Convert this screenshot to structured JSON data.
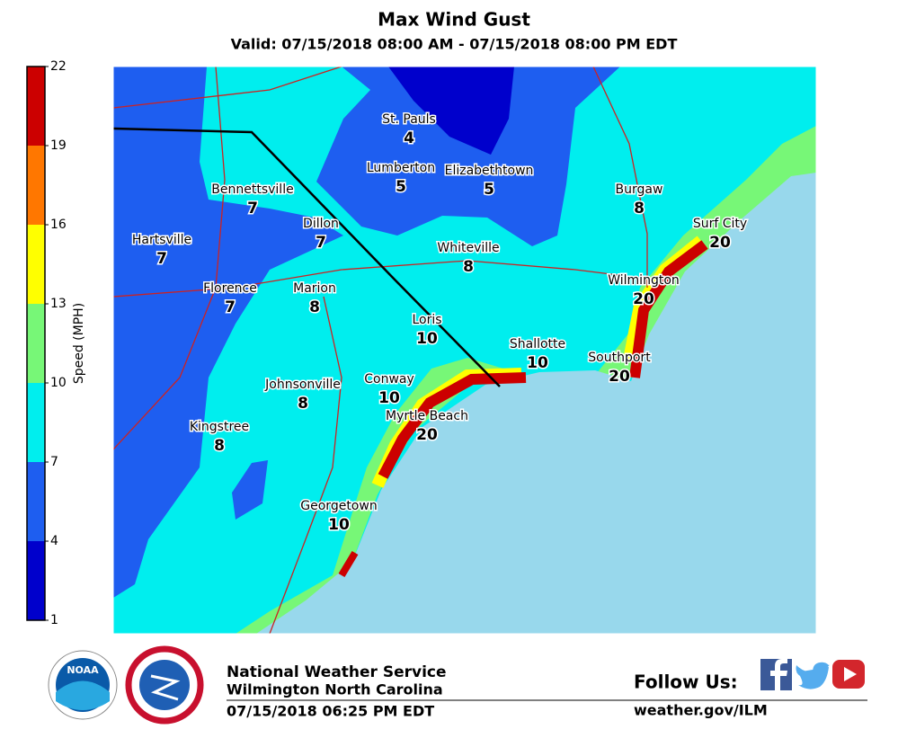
{
  "title": "Max Wind Gust",
  "subtitle": "Valid: 07/15/2018 08:00 AM - 07/15/2018 08:00 PM EDT",
  "colorbar": {
    "label": "Speed (MPH)",
    "ticks": [
      1,
      4,
      7,
      10,
      13,
      16,
      19,
      22
    ],
    "colors": [
      "#0000cc",
      "#1e5ef0",
      "#00eeee",
      "#77f777",
      "#ffff00",
      "#ff7700",
      "#cc0000"
    ]
  },
  "cities": [
    {
      "name": "St. Pauls",
      "value": 4
    },
    {
      "name": "Lumberton",
      "value": 5
    },
    {
      "name": "Elizabethtown",
      "value": 5
    },
    {
      "name": "Bennettsville",
      "value": 7
    },
    {
      "name": "Burgaw",
      "value": 8
    },
    {
      "name": "Dillon",
      "value": 7
    },
    {
      "name": "Surf City",
      "value": 20
    },
    {
      "name": "Hartsville",
      "value": 7
    },
    {
      "name": "Whiteville",
      "value": 8
    },
    {
      "name": "Wilmington",
      "value": 20
    },
    {
      "name": "Florence",
      "value": 7
    },
    {
      "name": "Marion",
      "value": 8
    },
    {
      "name": "Loris",
      "value": 10
    },
    {
      "name": "Shallotte",
      "value": 10
    },
    {
      "name": "Southport",
      "value": 20
    },
    {
      "name": "Conway",
      "value": 10
    },
    {
      "name": "Johnsonville",
      "value": 8
    },
    {
      "name": "Myrtle Beach",
      "value": 20
    },
    {
      "name": "Kingstree",
      "value": 8
    },
    {
      "name": "Georgetown",
      "value": 10
    }
  ],
  "logos": {
    "noaa": "NOAA"
  },
  "footer": {
    "org": "National Weather Service",
    "office": "Wilmington North Carolina",
    "issued": "07/15/2018 06:25 PM EDT",
    "follow": "Follow Us:",
    "url": "weather.gov/ILM"
  }
}
